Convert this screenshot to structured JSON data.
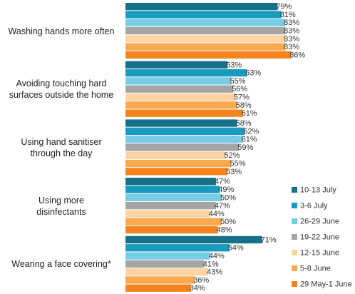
{
  "chart_data": {
    "type": "bar",
    "orientation": "horizontal",
    "categories": [
      "Washing hands more often",
      "Avoiding touching hard\nsurfaces outside the home",
      "Using hand sanitiser\nthrough the day",
      "Using more\ndisinfectants",
      "Wearing a face covering*"
    ],
    "legend": "lower right",
    "series": [
      {
        "name": "10-13 July",
        "color": "#17708a",
        "values": [
          79,
          53,
          58,
          47,
          71
        ],
        "value_labels": [
          "79%",
          "53%",
          "58%",
          "47%",
          "71%"
        ]
      },
      {
        "name": "3-6 July",
        "color": "#1a9bbd",
        "values": [
          81,
          63,
          62,
          49,
          54
        ],
        "value_labels": [
          "81%",
          "63%",
          "62%",
          "49%",
          "54%"
        ]
      },
      {
        "name": "26-29 June",
        "color": "#78cde6",
        "values": [
          83,
          55,
          61,
          50,
          44
        ],
        "value_labels": [
          "83%",
          "55%",
          "61%",
          "50%",
          "44%"
        ]
      },
      {
        "name": "19-22 June",
        "color": "#a5a5a5",
        "values": [
          83,
          56,
          59,
          47,
          41
        ],
        "value_labels": [
          "83%",
          "56%",
          "59%",
          "47%",
          "41%"
        ]
      },
      {
        "name": "12-15 June",
        "color": "#fdd3a3",
        "values": [
          83,
          57,
          52,
          44,
          43
        ],
        "value_labels": [
          "83%",
          "57%",
          "52%",
          "44%",
          "43%"
        ]
      },
      {
        "name": "5-8 June",
        "color": "#f9a950",
        "values": [
          83,
          58,
          55,
          50,
          36
        ],
        "value_labels": [
          "83%",
          "58%",
          "55%",
          "50%",
          "36%"
        ]
      },
      {
        "name": "29 May-1 June",
        "color": "#f3841e",
        "values": [
          86,
          61,
          53,
          48,
          34
        ],
        "value_labels": [
          "86%",
          "61%",
          "53%",
          "48%",
          "34%"
        ]
      }
    ]
  }
}
